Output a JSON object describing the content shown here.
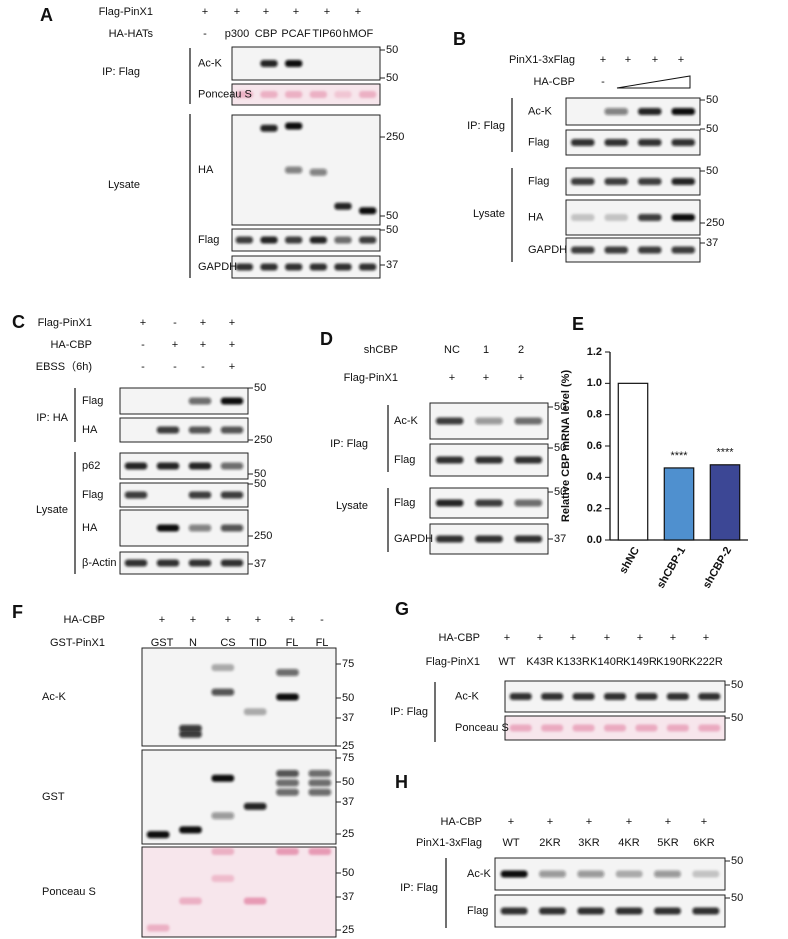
{
  "panels": [
    {
      "letter": "A",
      "conditions": [
        {
          "label": "Flag-PinX1",
          "values": [
            "+",
            "+",
            "+",
            "+",
            "+",
            "+"
          ]
        },
        {
          "label": "HA-HATs",
          "values": [
            "-",
            "p300",
            "CBP",
            "PCAF",
            "TIP60",
            "hMOF"
          ]
        }
      ],
      "groups": [
        {
          "label": "IP: Flag",
          "blots": [
            {
              "label": "Ac-K",
              "markers": [
                50
              ]
            },
            {
              "label": "Ponceau S",
              "markers": [
                50
              ]
            }
          ]
        },
        {
          "label": "Lysate",
          "blots": [
            {
              "label": "HA",
              "markers": [
                250,
                50
              ]
            },
            {
              "label": "Flag",
              "markers": [
                50
              ]
            },
            {
              "label": "GAPDH",
              "markers": [
                37
              ]
            }
          ]
        }
      ]
    },
    {
      "letter": "B",
      "conditions": [
        {
          "label": "PinX1-3xFlag",
          "values": [
            "+",
            "+",
            "+",
            "+"
          ]
        },
        {
          "label": "HA-CBP",
          "values": [
            "-"
          ]
        }
      ],
      "groups": [
        {
          "label": "IP: Flag",
          "blots": [
            {
              "label": "Ac-K",
              "markers": [
                50
              ]
            },
            {
              "label": "Flag",
              "markers": [
                50
              ]
            }
          ]
        },
        {
          "label": "Lysate",
          "blots": [
            {
              "label": "Flag",
              "markers": [
                50
              ]
            },
            {
              "label": "HA",
              "markers": [
                250
              ]
            },
            {
              "label": "GAPDH",
              "markers": [
                37
              ]
            }
          ]
        }
      ]
    },
    {
      "letter": "C",
      "conditions": [
        {
          "label": "Flag-PinX1",
          "values": [
            "+",
            "-",
            "+",
            "+"
          ]
        },
        {
          "label": "HA-CBP",
          "values": [
            "-",
            "+",
            "+",
            "+"
          ]
        },
        {
          "label": "EBSS（6h)",
          "values": [
            "-",
            "-",
            "-",
            "+"
          ]
        }
      ],
      "groups": [
        {
          "label": "IP: HA",
          "blots": [
            {
              "label": "Flag",
              "markers": [
                50
              ]
            },
            {
              "label": "HA",
              "markers": [
                250
              ]
            }
          ]
        },
        {
          "label": "Lysate",
          "blots": [
            {
              "label": "p62",
              "markers": [
                50
              ]
            },
            {
              "label": "Flag",
              "markers": [
                50
              ]
            },
            {
              "label": "HA",
              "markers": [
                250
              ]
            },
            {
              "label": "β-Actin",
              "markers": [
                37
              ]
            }
          ]
        }
      ]
    },
    {
      "letter": "D",
      "conditions": [
        {
          "label": "shCBP",
          "values": [
            "NC",
            "1",
            "2"
          ]
        },
        {
          "label": "Flag-PinX1",
          "values": [
            "+",
            "+",
            "+"
          ]
        }
      ],
      "groups": [
        {
          "label": "IP: Flag",
          "blots": [
            {
              "label": "Ac-K",
              "markers": [
                50
              ]
            },
            {
              "label": "Flag",
              "markers": [
                50
              ]
            }
          ]
        },
        {
          "label": "Lysate",
          "blots": [
            {
              "label": "Flag",
              "markers": [
                50
              ]
            },
            {
              "label": "GAPDH",
              "markers": [
                37
              ]
            }
          ]
        }
      ]
    },
    {
      "letter": "F",
      "conditions": [
        {
          "label": "HA-CBP",
          "values": [
            "+",
            "+",
            "+",
            "+",
            "+",
            "-"
          ]
        },
        {
          "label": "GST-PinX1",
          "values": [
            "GST",
            "N",
            "CS",
            "TID",
            "FL",
            "FL"
          ]
        }
      ],
      "groups": [
        {
          "blots": [
            {
              "label": "Ac-K",
              "markers": [
                75,
                50,
                37,
                25
              ]
            },
            {
              "label": "GST",
              "markers": [
                75,
                50,
                37,
                25
              ]
            },
            {
              "label": "Ponceau  S",
              "markers": [
                50,
                37,
                25
              ]
            }
          ]
        }
      ]
    },
    {
      "letter": "G",
      "conditions": [
        {
          "label": "HA-CBP",
          "values": [
            "+",
            "+",
            "+",
            "+",
            "+",
            "+",
            "+"
          ]
        },
        {
          "label": "Flag-PinX1",
          "values": [
            "WT",
            "K43R",
            "K133R",
            "K140R",
            "K149R",
            "K190R",
            "K222R"
          ]
        }
      ],
      "groups": [
        {
          "label": "IP: Flag",
          "blots": [
            {
              "label": "Ac-K",
              "markers": [
                50
              ]
            },
            {
              "label": "Ponceau S",
              "markers": [
                50
              ]
            }
          ]
        }
      ]
    },
    {
      "letter": "H",
      "conditions": [
        {
          "label": "HA-CBP",
          "values": [
            "+",
            "+",
            "+",
            "+",
            "+",
            "+"
          ]
        },
        {
          "label": "PinX1-3xFlag",
          "values": [
            "WT",
            "2KR",
            "3KR",
            "4KR",
            "5KR",
            "6KR"
          ]
        }
      ],
      "groups": [
        {
          "label": "IP: Flag",
          "blots": [
            {
              "label": "Ac-K",
              "markers": [
                50
              ]
            },
            {
              "label": "Flag",
              "markers": [
                50
              ]
            }
          ]
        }
      ]
    }
  ],
  "chart_data": {
    "type": "bar",
    "panel": "E",
    "ylabel": "Relative CBP mRNA level (%)",
    "categories": [
      "shNC",
      "shCBP-1",
      "shCBP-2"
    ],
    "values": [
      1.0,
      0.46,
      0.48
    ],
    "colors": [
      "#ffffff",
      "#4f90cf",
      "#3c4795"
    ],
    "annotations": [
      null,
      "****",
      "****"
    ],
    "ylim": [
      0,
      1.2
    ],
    "yticks": [
      {
        "value": 0,
        "label": "0.0"
      },
      0.2,
      0.4,
      0.6,
      0.8,
      {
        "value": 1,
        "label": "1.0"
      },
      1.2
    ]
  }
}
